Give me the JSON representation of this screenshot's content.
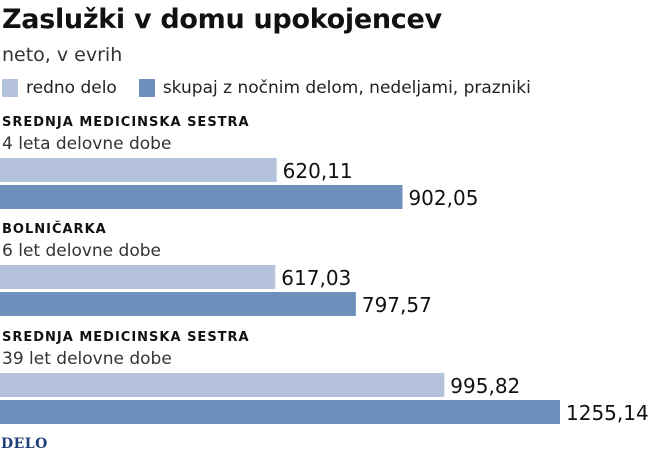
{
  "title": "Zaslužki v domu upokojencev",
  "subtitle": "neto, v evrih",
  "colors": {
    "redno": "#b4c2dc",
    "skupaj": "#6f8fbd"
  },
  "chart_data": {
    "type": "bar",
    "orientation": "horizontal",
    "title": "Zaslužki v domu upokojencev",
    "subtitle": "neto, v evrih",
    "legend_position": "top-left",
    "grid": false,
    "xlim": [
      0,
      1400
    ],
    "categories": [
      {
        "title": "SREDNJA MEDICINSKA SESTRA",
        "sub": "4 leta delovne dobe"
      },
      {
        "title": "BOLNIČARKA",
        "sub": "6 let delovne dobe"
      },
      {
        "title": "SREDNJA MEDICINSKA SESTRA",
        "sub": "39 let delovne dobe"
      }
    ],
    "series": [
      {
        "name": "redno delo",
        "values": [
          620.11,
          617.03,
          995.82
        ],
        "labels": [
          "620,11",
          "617,03",
          "995,82"
        ]
      },
      {
        "name": "skupaj z nočnim delom, nedeljami, prazniki",
        "values": [
          902.05,
          797.57,
          1255.14
        ],
        "labels": [
          "902,05",
          "797,57",
          "1255,14"
        ]
      }
    ]
  },
  "logo": "DELO"
}
